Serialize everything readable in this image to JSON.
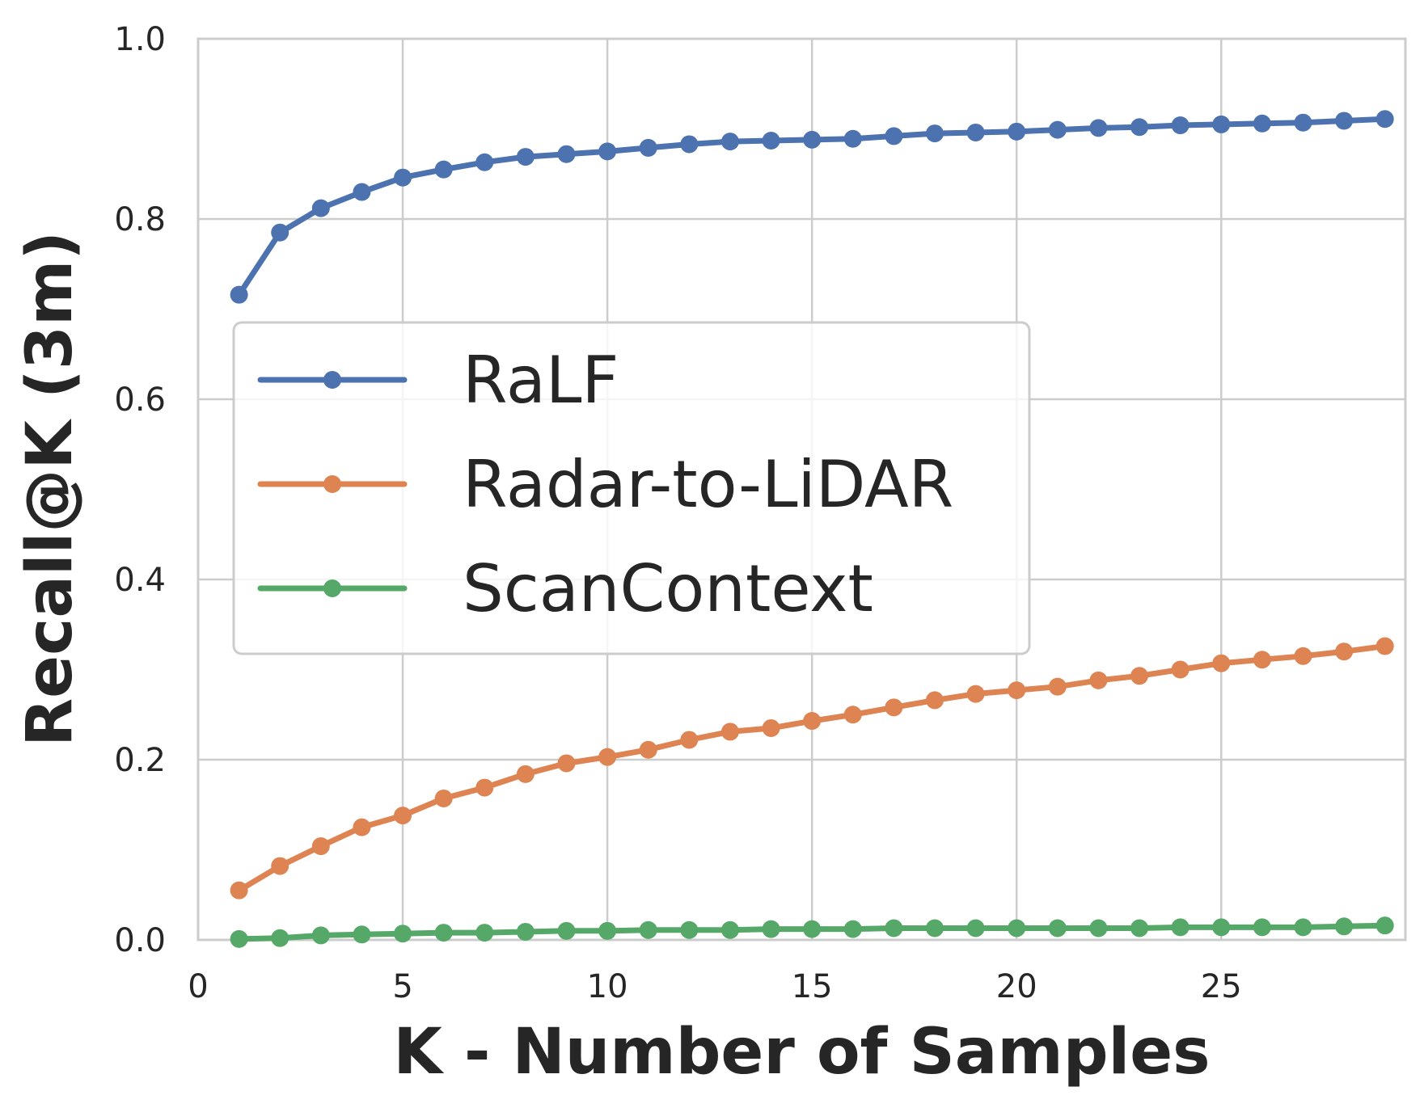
{
  "chart_data": {
    "type": "line",
    "xlabel": "K - Number of Samples",
    "ylabel": "Recall@K (3m)",
    "xlim": [
      0,
      29.5
    ],
    "ylim": [
      0.0,
      1.0
    ],
    "xticks": [
      "0",
      "5",
      "10",
      "15",
      "20",
      "25"
    ],
    "yticks": [
      "0.0",
      "0.2",
      "0.4",
      "0.6",
      "0.8",
      "1.0"
    ],
    "grid": true,
    "legend_position": "center-left",
    "x": [
      1,
      2,
      3,
      4,
      5,
      6,
      7,
      8,
      9,
      10,
      11,
      12,
      13,
      14,
      15,
      16,
      17,
      18,
      19,
      20,
      21,
      22,
      23,
      24,
      25,
      26,
      27,
      28,
      29
    ],
    "series": [
      {
        "name": "RaLF",
        "color": "#4c72b0",
        "values": [
          0.716,
          0.785,
          0.812,
          0.83,
          0.846,
          0.855,
          0.863,
          0.869,
          0.872,
          0.875,
          0.879,
          0.883,
          0.886,
          0.887,
          0.888,
          0.889,
          0.892,
          0.895,
          0.896,
          0.897,
          0.899,
          0.901,
          0.902,
          0.904,
          0.905,
          0.906,
          0.907,
          0.909,
          0.911
        ]
      },
      {
        "name": "Radar-to-LiDAR",
        "color": "#dd8452",
        "values": [
          0.055,
          0.082,
          0.104,
          0.125,
          0.138,
          0.157,
          0.169,
          0.184,
          0.196,
          0.203,
          0.211,
          0.222,
          0.231,
          0.235,
          0.243,
          0.25,
          0.258,
          0.266,
          0.273,
          0.277,
          0.281,
          0.288,
          0.293,
          0.3,
          0.307,
          0.311,
          0.315,
          0.32,
          0.326
        ]
      },
      {
        "name": "ScanContext",
        "color": "#55a868",
        "values": [
          0.001,
          0.002,
          0.005,
          0.006,
          0.007,
          0.008,
          0.008,
          0.009,
          0.01,
          0.01,
          0.011,
          0.011,
          0.011,
          0.012,
          0.012,
          0.012,
          0.013,
          0.013,
          0.013,
          0.013,
          0.013,
          0.013,
          0.013,
          0.014,
          0.014,
          0.014,
          0.014,
          0.015,
          0.016
        ]
      }
    ]
  }
}
